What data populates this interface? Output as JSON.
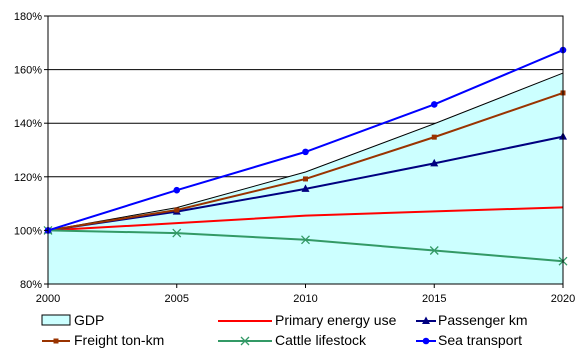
{
  "chart_data": {
    "type": "line",
    "title": "",
    "xlabel": "",
    "ylabel": "",
    "x": [
      2000,
      2005,
      2010,
      2015,
      2020
    ],
    "xlim": [
      2000,
      2020
    ],
    "ylim": [
      80,
      180
    ],
    "y_ticks": [
      "80%",
      "100%",
      "120%",
      "140%",
      "160%",
      "180%"
    ],
    "y_tick_values": [
      80,
      100,
      120,
      140,
      160,
      180
    ],
    "x_ticks": [
      "2000",
      "2005",
      "2010",
      "2015",
      "2020"
    ],
    "grid": "horizontal",
    "legend_position": "bottom",
    "series": [
      {
        "name": "GDP",
        "kind": "area",
        "color": "#ccffff",
        "edge": "#000000",
        "values": [
          100,
          108.5,
          121.8,
          139.8,
          158.7
        ]
      },
      {
        "name": "Primary energy use",
        "kind": "line",
        "color": "#ff0000",
        "marker": "none",
        "values": [
          100,
          102.7,
          105.5,
          107.1,
          108.6
        ]
      },
      {
        "name": "Passenger km",
        "kind": "line",
        "color": "#000080",
        "marker": "triangle",
        "values": [
          100,
          107,
          115.5,
          125,
          135
        ]
      },
      {
        "name": "Freight ton-km",
        "kind": "line",
        "color": "#993300",
        "marker": "square",
        "values": [
          100,
          107.6,
          119.2,
          134.8,
          151.3
        ]
      },
      {
        "name": "Cattle lifestock",
        "kind": "line",
        "color": "#339966",
        "marker": "x",
        "values": [
          100,
          99,
          96.5,
          92.5,
          88.5
        ]
      },
      {
        "name": "Sea transport",
        "kind": "line",
        "color": "#0000ff",
        "marker": "circle",
        "values": [
          100,
          115,
          129.3,
          147,
          167.3
        ]
      }
    ]
  }
}
